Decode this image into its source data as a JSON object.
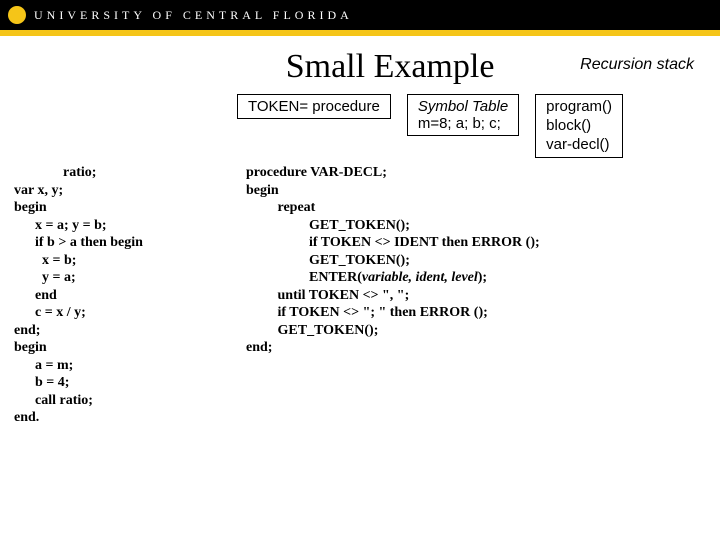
{
  "header": {
    "university": "UNIVERSITY OF CENTRAL FLORIDA"
  },
  "title": "Small Example",
  "recursion_label": "Recursion stack",
  "token_box": "TOKEN= procedure",
  "symbol_table": {
    "title": "Symbol Table",
    "row": "m=8; a; b; c;"
  },
  "stack_box": [
    "program()",
    "block()",
    "var-decl()"
  ],
  "left_code": "              ratio;\nvar x, y;\nbegin\n      x = a; y = b;\n      if b > a then begin\n        x = b;\n        y = a;\n      end\n      c = x / y;\nend;\nbegin\n      a = m;\n      b = 4;\n      call ratio;\nend.",
  "right_code": "procedure VAR-DECL;\nbegin\n         repeat\n                  GET_TOKEN();\n                  if TOKEN <> IDENT then ERROR ();\n                  GET_TOKEN();\n                  ENTER(variable, ident, level);\n         until TOKEN <> \", \";\n         if TOKEN <> \"; \" then ERROR ();\n         GET_TOKEN();\nend;",
  "colors": {
    "gold": "#f5c518",
    "black": "#000000",
    "white": "#ffffff"
  }
}
